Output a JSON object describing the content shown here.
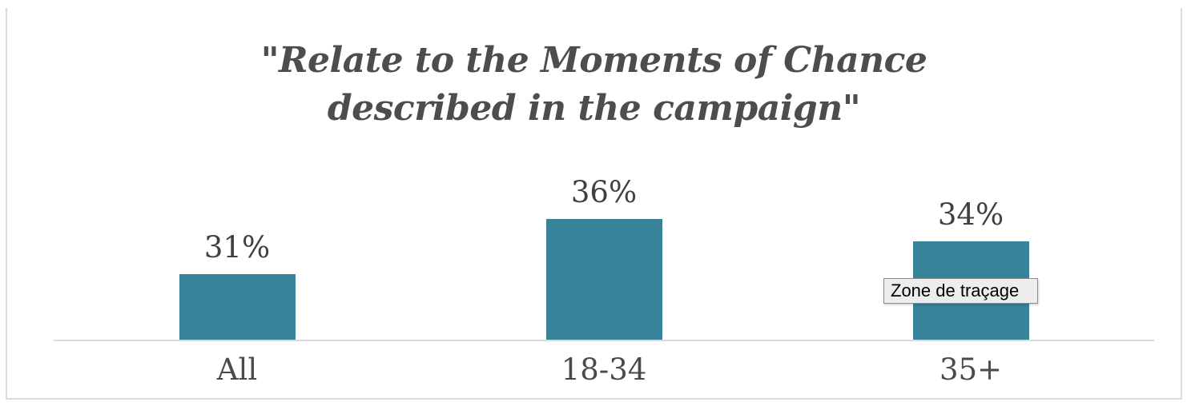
{
  "chart_data": {
    "type": "bar",
    "title": "\"Relate to the Moments of Chance described in the campaign\"",
    "categories": [
      "All",
      "18-34",
      "35+"
    ],
    "values": [
      31,
      36,
      34
    ],
    "data_labels": [
      "31%",
      "36%",
      "34%"
    ],
    "xlabel": "",
    "ylabel": "",
    "ylim": [
      25,
      38
    ],
    "grid": false,
    "legend": "none",
    "bar_color": "#38839A",
    "axis_line_color": "#D9D9D9",
    "title_color": "#4D4D4D",
    "label_color": "#404040"
  },
  "tooltip": {
    "text": "Zone de traçage"
  }
}
